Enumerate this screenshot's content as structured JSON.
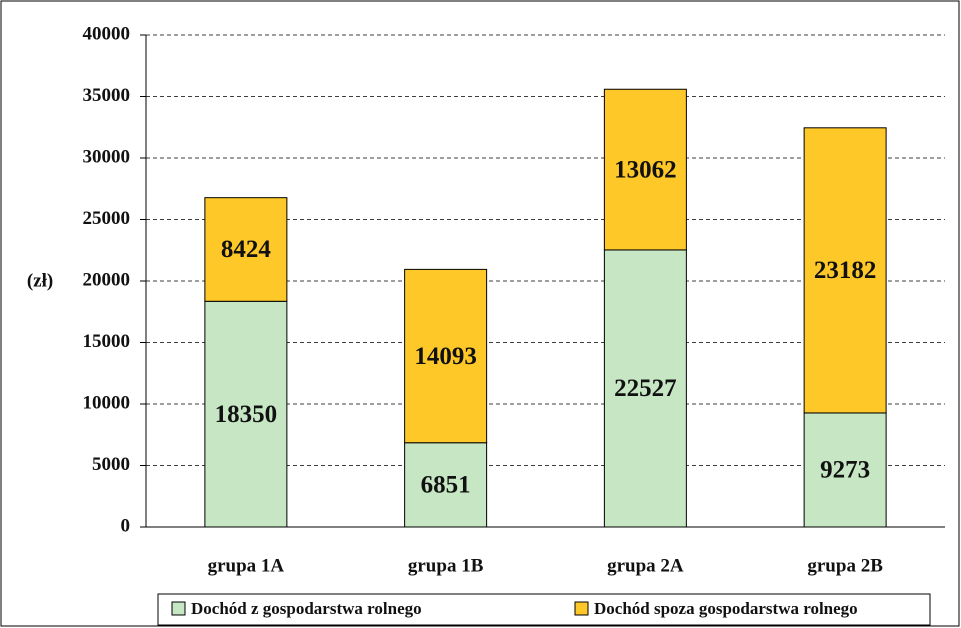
{
  "chart_data": {
    "type": "stacked_bar",
    "ylabel": "(zł)",
    "categories": [
      "grupa 1A",
      "grupa 1B",
      "grupa 2A",
      "grupa 2B"
    ],
    "series": [
      {
        "name": "Dochód z gospodarstwa rolnego",
        "color": "#c6e6c4",
        "values": [
          18350,
          6851,
          22527,
          9273
        ]
      },
      {
        "name": "Dochód spoza gospodarstwa rolnego",
        "color": "#ffc829",
        "values": [
          8424,
          14093,
          13062,
          23182
        ]
      }
    ],
    "ylim": [
      0,
      40000
    ],
    "yticks": [
      0,
      5000,
      10000,
      15000,
      20000,
      25000,
      30000,
      35000,
      40000
    ],
    "grid": true,
    "legend": "bottom"
  }
}
